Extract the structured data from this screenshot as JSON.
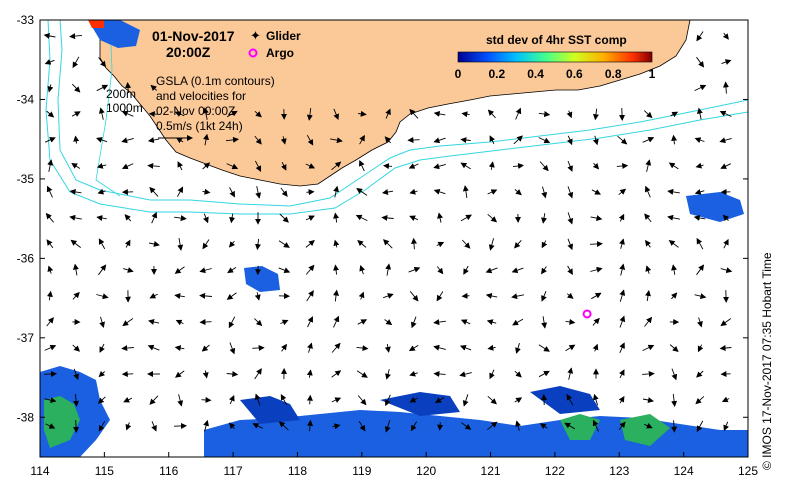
{
  "map": {
    "date": "01-Nov-2017",
    "time": "20:00Z",
    "legend_glider": "Glider",
    "legend_argo": "Argo",
    "colorbar_title": "std dev of 4hr SST comp",
    "colorbar_ticks": [
      "0",
      "0.2",
      "0.4",
      "0.6",
      "0.8",
      "1"
    ],
    "contour_200": "200m",
    "contour_1000": "1000m",
    "gsla_line1": "GSLA (0.1m contours)",
    "gsla_line2": "and velocities for",
    "gsla_line3": "02-Nov 00:00Z",
    "scale_label": "0.5m/s (1kt 24h)",
    "credit": "© IMOS 17-Nov-2017 07:35 Hobart Time",
    "x_ticks": [
      "114",
      "115",
      "116",
      "117",
      "118",
      "119",
      "120",
      "121",
      "122",
      "123",
      "124",
      "125"
    ],
    "y_ticks": [
      "-33",
      "-34",
      "-35",
      "-36",
      "-37",
      "-38"
    ],
    "lon_range": [
      114,
      125
    ],
    "lat_range": [
      -38.5,
      -33
    ],
    "argo_float": {
      "lon": 122.5,
      "lat": -36.7
    },
    "colors": {
      "land": "#fbc898",
      "shelf_contour": "#33d6e0",
      "argo_marker": "#ff00ff",
      "colormap": [
        "#000090",
        "#0050ff",
        "#00c0ff",
        "#40ff90",
        "#d0ff20",
        "#ffb000",
        "#ff3000",
        "#800000"
      ]
    }
  }
}
